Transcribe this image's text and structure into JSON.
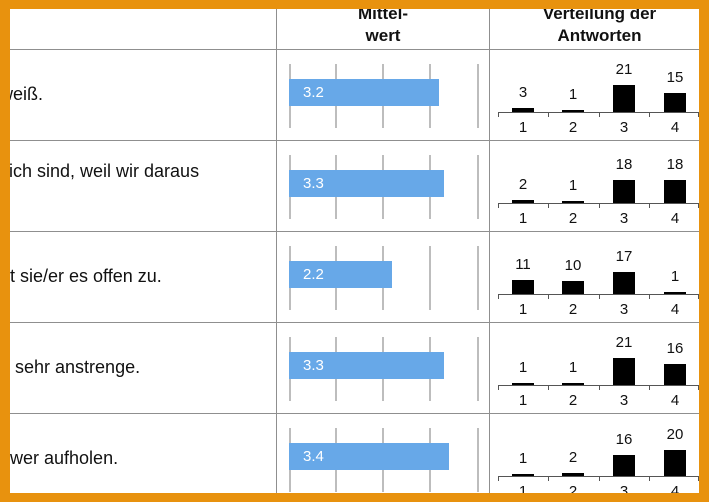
{
  "header": {
    "mean_title": "Mittel-\nwert",
    "dist_title": "Verteilung der\nAntworten"
  },
  "chart_data": {
    "type": "table",
    "columns": [
      "Mittelwert",
      "Verteilung der Antworten"
    ],
    "mean_axis": {
      "min": 1,
      "max": 4
    },
    "categories": [
      "1",
      "2",
      "3",
      "4"
    ],
    "colors": {
      "mean_bar": "#67a8e8",
      "dist_bar": "#000000",
      "frame": "#e8920e"
    },
    "rows": [
      {
        "statement": "weiß.",
        "mean": 3.2,
        "mean_label": "3.2",
        "counts": [
          3,
          1,
          21,
          15
        ]
      },
      {
        "statement": "tlich sind, weil wir daraus",
        "mean": 3.3,
        "mean_label": "3.3",
        "counts": [
          2,
          1,
          18,
          18
        ]
      },
      {
        "statement": "ot sie/er es offen zu.",
        "mean": 2.2,
        "mean_label": "2.2",
        "counts": [
          11,
          10,
          17,
          1
        ]
      },
      {
        "statement": "n sehr anstrenge.",
        "mean": 3.3,
        "mean_label": "3.3",
        "counts": [
          1,
          1,
          21,
          16
        ]
      },
      {
        "statement": "hwer aufholen.",
        "mean": 3.4,
        "mean_label": "3.4",
        "counts": [
          1,
          2,
          16,
          20
        ]
      }
    ]
  }
}
